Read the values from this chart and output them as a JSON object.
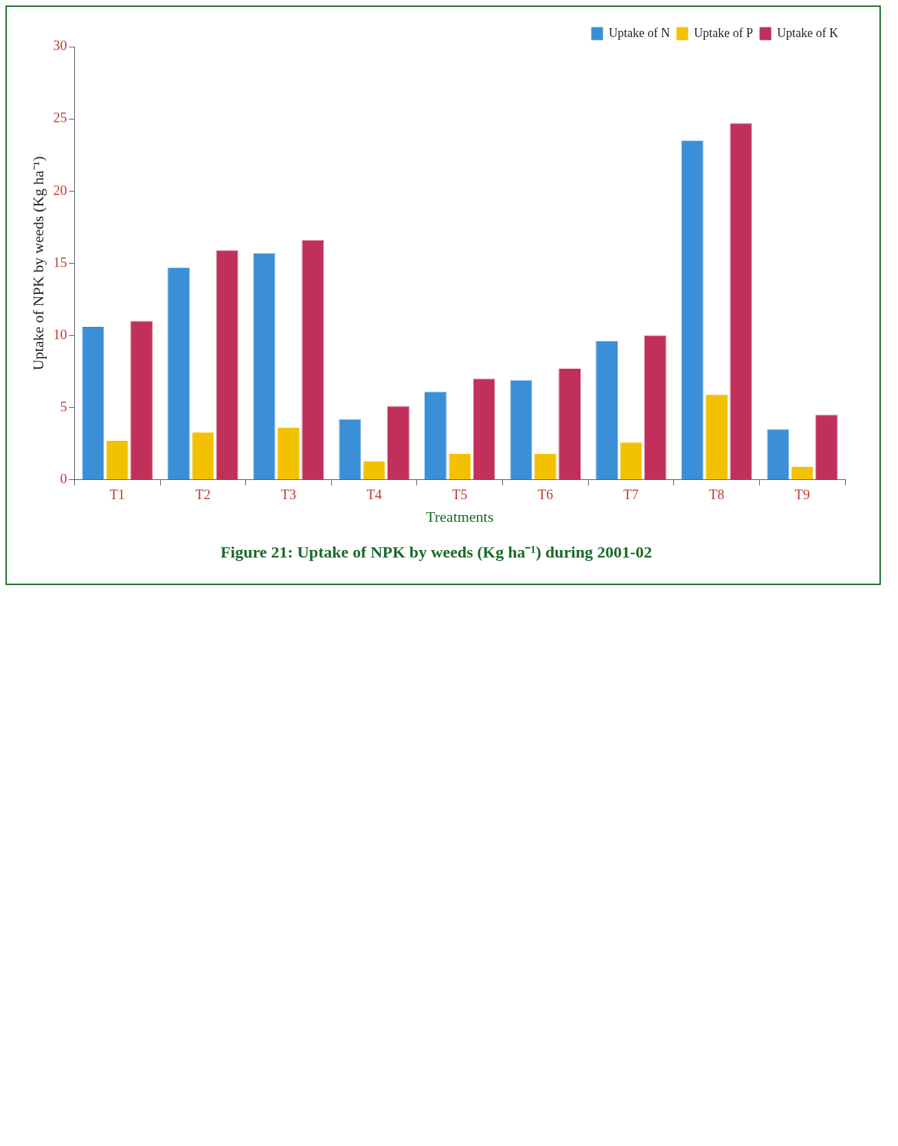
{
  "chart_data": {
    "type": "bar",
    "title": "Figure 21: Uptake of NPK by weeds (Kg ha⁻¹) during 2001-02",
    "xlabel": "Treatments",
    "ylabel": "Uptake of NPK by weeds (Kg ha⁻¹)",
    "categories": [
      "T1",
      "T2",
      "T3",
      "T4",
      "T5",
      "T6",
      "T7",
      "T8",
      "T9"
    ],
    "series": [
      {
        "name": "Uptake of N",
        "color": "#3a8fd6",
        "values": [
          10.6,
          14.7,
          15.7,
          4.2,
          6.1,
          6.9,
          9.6,
          23.5,
          3.5
        ]
      },
      {
        "name": "Uptake of P",
        "color": "#f2c200",
        "values": [
          2.7,
          3.3,
          3.6,
          1.3,
          1.8,
          1.8,
          2.6,
          5.9,
          0.9
        ]
      },
      {
        "name": "Uptake of K",
        "color": "#c0305a",
        "values": [
          11.0,
          15.9,
          16.6,
          5.1,
          7.0,
          7.7,
          10.0,
          24.7,
          4.5
        ]
      }
    ],
    "ylim": [
      0,
      30
    ],
    "yticks": [
      0,
      5,
      10,
      15,
      20,
      25,
      30
    ],
    "grid": false,
    "legend": "top right"
  }
}
